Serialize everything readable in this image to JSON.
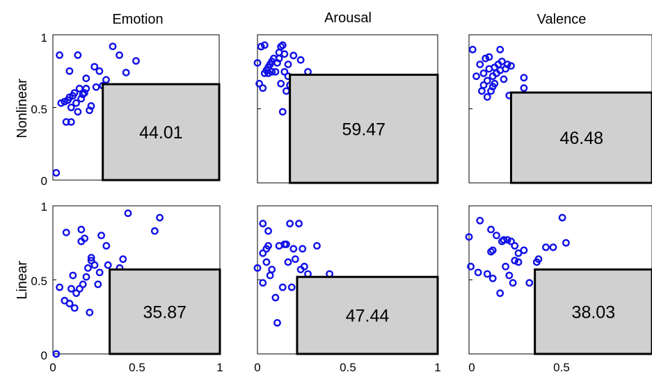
{
  "colors": {
    "marker": "#1010e8",
    "box_fill": "#d0d0d0",
    "box_stroke": "#000000",
    "axes": "#000000"
  },
  "column_titles": [
    "Emotion",
    "Arousal",
    "Valence"
  ],
  "row_labels": [
    "Nonlinear",
    "Linear"
  ],
  "y_ticks": [
    "0",
    "0.5",
    "1"
  ],
  "x_ticks": [
    "0",
    "0.5",
    "1"
  ],
  "chart_data": [
    {
      "type": "scatter",
      "row": "Nonlinear",
      "column": "Emotion",
      "xlim": [
        0,
        1
      ],
      "ylim": [
        0,
        1
      ],
      "box": {
        "x": [
          0.3,
          1
        ],
        "y": [
          0,
          0.66
        ],
        "label": "44.01"
      },
      "points": [
        [
          0.02,
          0.05
        ],
        [
          0.04,
          0.86
        ],
        [
          0.05,
          0.53
        ],
        [
          0.07,
          0.54
        ],
        [
          0.08,
          0.4
        ],
        [
          0.09,
          0.55
        ],
        [
          0.1,
          0.75
        ],
        [
          0.1,
          0.57
        ],
        [
          0.11,
          0.4
        ],
        [
          0.11,
          0.5
        ],
        [
          0.12,
          0.58
        ],
        [
          0.13,
          0.6
        ],
        [
          0.14,
          0.53
        ],
        [
          0.15,
          0.47
        ],
        [
          0.15,
          0.86
        ],
        [
          0.16,
          0.63
        ],
        [
          0.17,
          0.56
        ],
        [
          0.18,
          0.59
        ],
        [
          0.19,
          0.6
        ],
        [
          0.2,
          0.63
        ],
        [
          0.2,
          0.7
        ],
        [
          0.22,
          0.48
        ],
        [
          0.23,
          0.51
        ],
        [
          0.25,
          0.78
        ],
        [
          0.26,
          0.64
        ],
        [
          0.28,
          0.75
        ],
        [
          0.3,
          0.65
        ],
        [
          0.32,
          0.69
        ],
        [
          0.36,
          0.92
        ],
        [
          0.4,
          0.86
        ],
        [
          0.44,
          0.74
        ],
        [
          0.5,
          0.82
        ]
      ]
    },
    {
      "type": "scatter",
      "row": "Nonlinear",
      "column": "Arousal",
      "xlim": [
        0,
        1
      ],
      "ylim": [
        0,
        1
      ],
      "box": {
        "x": [
          0.18,
          1
        ],
        "y": [
          0,
          0.73
        ],
        "label": "59.47"
      },
      "points": [
        [
          0.0,
          0.81
        ],
        [
          0.01,
          0.67
        ],
        [
          0.02,
          0.92
        ],
        [
          0.03,
          0.64
        ],
        [
          0.04,
          0.93
        ],
        [
          0.04,
          0.74
        ],
        [
          0.05,
          0.76
        ],
        [
          0.06,
          0.74
        ],
        [
          0.06,
          0.78
        ],
        [
          0.07,
          0.8
        ],
        [
          0.08,
          0.75
        ],
        [
          0.08,
          0.82
        ],
        [
          0.09,
          0.84
        ],
        [
          0.1,
          0.75
        ],
        [
          0.11,
          0.81
        ],
        [
          0.12,
          0.88
        ],
        [
          0.12,
          0.84
        ],
        [
          0.13,
          0.92
        ],
        [
          0.13,
          0.67
        ],
        [
          0.14,
          0.48
        ],
        [
          0.14,
          0.93
        ],
        [
          0.15,
          0.87
        ],
        [
          0.15,
          0.75
        ],
        [
          0.16,
          0.62
        ],
        [
          0.17,
          0.8
        ],
        [
          0.17,
          0.72
        ],
        [
          0.18,
          0.66
        ],
        [
          0.2,
          0.86
        ],
        [
          0.24,
          0.83
        ],
        [
          0.28,
          0.75
        ]
      ]
    },
    {
      "type": "scatter",
      "row": "Nonlinear",
      "column": "Valence",
      "xlim": [
        0,
        1
      ],
      "ylim": [
        0,
        1
      ],
      "box": {
        "x": [
          0.23,
          1
        ],
        "y": [
          0,
          0.61
        ],
        "label": "46.48"
      },
      "points": [
        [
          0.02,
          0.9
        ],
        [
          0.04,
          0.72
        ],
        [
          0.06,
          0.8
        ],
        [
          0.07,
          0.62
        ],
        [
          0.08,
          0.66
        ],
        [
          0.08,
          0.74
        ],
        [
          0.09,
          0.84
        ],
        [
          0.1,
          0.58
        ],
        [
          0.1,
          0.69
        ],
        [
          0.11,
          0.77
        ],
        [
          0.11,
          0.85
        ],
        [
          0.12,
          0.62
        ],
        [
          0.13,
          0.65
        ],
        [
          0.13,
          0.72
        ],
        [
          0.14,
          0.67
        ],
        [
          0.14,
          0.78
        ],
        [
          0.15,
          0.74
        ],
        [
          0.16,
          0.8
        ],
        [
          0.17,
          0.76
        ],
        [
          0.17,
          0.9
        ],
        [
          0.18,
          0.82
        ],
        [
          0.19,
          0.7
        ],
        [
          0.2,
          0.77
        ],
        [
          0.21,
          0.8
        ],
        [
          0.22,
          0.59
        ],
        [
          0.23,
          0.79
        ],
        [
          0.3,
          0.71
        ],
        [
          0.3,
          0.64
        ]
      ]
    },
    {
      "type": "scatter",
      "row": "Linear",
      "column": "Emotion",
      "xlim": [
        0,
        1
      ],
      "ylim": [
        0,
        1
      ],
      "box": {
        "x": [
          0.34,
          1
        ],
        "y": [
          0,
          0.57
        ],
        "label": "35.87"
      },
      "points": [
        [
          0.02,
          0.0
        ],
        [
          0.04,
          0.45
        ],
        [
          0.07,
          0.36
        ],
        [
          0.08,
          0.82
        ],
        [
          0.1,
          0.34
        ],
        [
          0.11,
          0.44
        ],
        [
          0.12,
          0.53
        ],
        [
          0.13,
          0.31
        ],
        [
          0.14,
          0.41
        ],
        [
          0.16,
          0.44
        ],
        [
          0.17,
          0.76
        ],
        [
          0.17,
          0.84
        ],
        [
          0.18,
          0.47
        ],
        [
          0.19,
          0.78
        ],
        [
          0.2,
          0.52
        ],
        [
          0.21,
          0.58
        ],
        [
          0.22,
          0.28
        ],
        [
          0.23,
          0.65
        ],
        [
          0.23,
          0.63
        ],
        [
          0.25,
          0.6
        ],
        [
          0.27,
          0.47
        ],
        [
          0.28,
          0.55
        ],
        [
          0.29,
          0.8
        ],
        [
          0.32,
          0.73
        ],
        [
          0.33,
          0.6
        ],
        [
          0.4,
          0.58
        ],
        [
          0.42,
          0.64
        ],
        [
          0.45,
          0.95
        ],
        [
          0.61,
          0.83
        ],
        [
          0.64,
          0.92
        ]
      ]
    },
    {
      "type": "scatter",
      "row": "Linear",
      "column": "Arousal",
      "xlim": [
        0,
        1
      ],
      "ylim": [
        0,
        1
      ],
      "box": {
        "x": [
          0.22,
          1
        ],
        "y": [
          0,
          0.52
        ],
        "label": "47.44"
      },
      "points": [
        [
          0.0,
          0.58
        ],
        [
          0.03,
          0.88
        ],
        [
          0.03,
          0.68
        ],
        [
          0.03,
          0.48
        ],
        [
          0.05,
          0.71
        ],
        [
          0.05,
          0.62
        ],
        [
          0.06,
          0.73
        ],
        [
          0.06,
          0.83
        ],
        [
          0.07,
          0.53
        ],
        [
          0.08,
          0.57
        ],
        [
          0.1,
          0.38
        ],
        [
          0.11,
          0.21
        ],
        [
          0.12,
          0.73
        ],
        [
          0.14,
          0.45
        ],
        [
          0.15,
          0.74
        ],
        [
          0.16,
          0.74
        ],
        [
          0.17,
          0.62
        ],
        [
          0.18,
          0.88
        ],
        [
          0.19,
          0.45
        ],
        [
          0.2,
          0.71
        ],
        [
          0.21,
          0.64
        ],
        [
          0.23,
          0.88
        ],
        [
          0.24,
          0.57
        ],
        [
          0.25,
          0.71
        ],
        [
          0.26,
          0.59
        ],
        [
          0.28,
          0.54
        ],
        [
          0.33,
          0.73
        ],
        [
          0.4,
          0.54
        ]
      ]
    },
    {
      "type": "scatter",
      "row": "Linear",
      "column": "Valence",
      "xlim": [
        0,
        1
      ],
      "ylim": [
        0,
        1
      ],
      "box": {
        "x": [
          0.36,
          1
        ],
        "y": [
          0,
          0.57
        ],
        "label": "38.03"
      },
      "points": [
        [
          0.0,
          0.79
        ],
        [
          0.01,
          0.59
        ],
        [
          0.05,
          0.55
        ],
        [
          0.06,
          0.9
        ],
        [
          0.1,
          0.54
        ],
        [
          0.12,
          0.69
        ],
        [
          0.12,
          0.84
        ],
        [
          0.13,
          0.51
        ],
        [
          0.13,
          0.7
        ],
        [
          0.15,
          0.8
        ],
        [
          0.17,
          0.41
        ],
        [
          0.18,
          0.76
        ],
        [
          0.19,
          0.77
        ],
        [
          0.2,
          0.59
        ],
        [
          0.21,
          0.77
        ],
        [
          0.22,
          0.53
        ],
        [
          0.23,
          0.76
        ],
        [
          0.24,
          0.48
        ],
        [
          0.25,
          0.63
        ],
        [
          0.25,
          0.73
        ],
        [
          0.27,
          0.68
        ],
        [
          0.27,
          0.62
        ],
        [
          0.3,
          0.7
        ],
        [
          0.33,
          0.48
        ],
        [
          0.37,
          0.62
        ],
        [
          0.38,
          0.64
        ],
        [
          0.42,
          0.72
        ],
        [
          0.46,
          0.72
        ],
        [
          0.51,
          0.92
        ],
        [
          0.53,
          0.75
        ]
      ]
    }
  ]
}
